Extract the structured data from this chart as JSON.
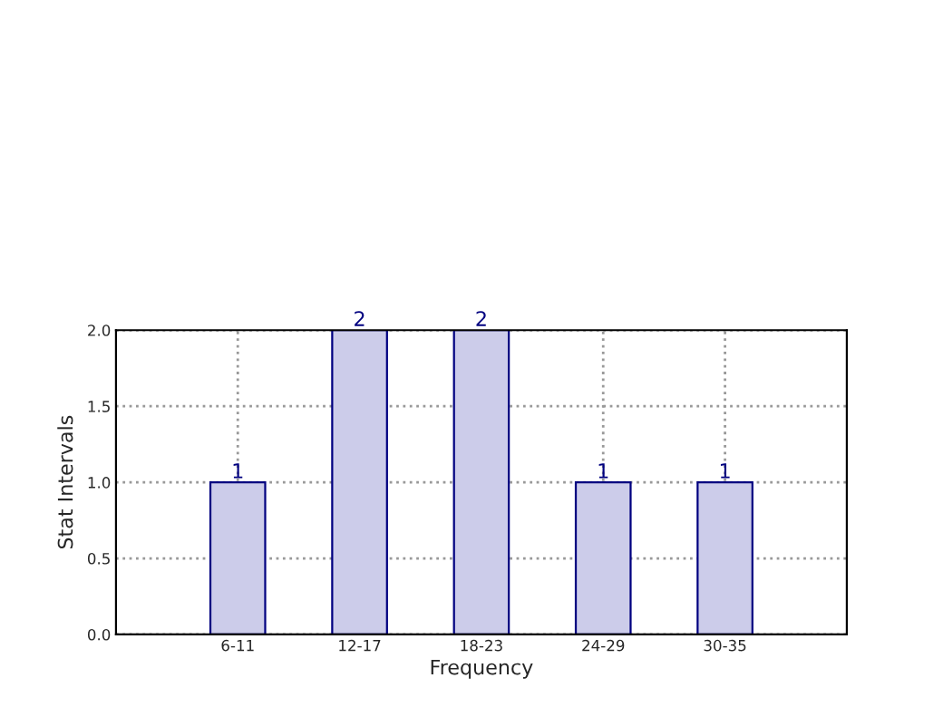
{
  "chart_data": {
    "type": "bar",
    "xlabel": "Frequency",
    "ylabel": "Stat Intervals",
    "categories": [
      "6-11",
      "12-17",
      "18-23",
      "24-29",
      "30-35"
    ],
    "values": [
      1,
      2,
      2,
      1,
      1
    ],
    "color": "#ccccea",
    "ylim": [
      0,
      2
    ],
    "yticks": [
      {
        "value": 0,
        "label": "0.0"
      },
      {
        "value": 0.5,
        "label": "0.5"
      },
      {
        "value": 1,
        "label": "1.0"
      },
      {
        "value": 1.5,
        "label": "1.5"
      },
      {
        "value": 2,
        "label": "2.0"
      }
    ],
    "grid": true,
    "data_labels": true
  }
}
